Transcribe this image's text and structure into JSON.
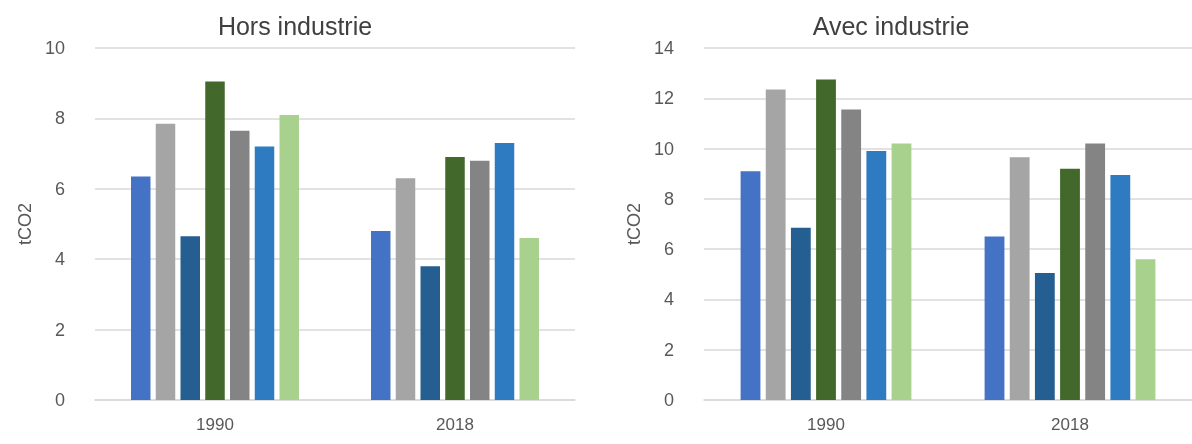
{
  "chart_data": [
    {
      "type": "bar",
      "title": "Hors industrie",
      "ylabel": "tCO2",
      "categories": [
        "1990",
        "2018"
      ],
      "ylim": [
        0,
        10
      ],
      "yticks": [
        0,
        2,
        4,
        6,
        8,
        10
      ],
      "grid": "y",
      "series": [
        {
          "color": "#4472c4",
          "values": [
            6.35,
            4.8
          ]
        },
        {
          "color": "#a5a5a5",
          "values": [
            7.85,
            6.3
          ]
        },
        {
          "color": "#255e91",
          "values": [
            4.65,
            3.8
          ]
        },
        {
          "color": "#43682b",
          "values": [
            9.05,
            6.9
          ]
        },
        {
          "color": "#848484",
          "values": [
            7.65,
            6.8
          ]
        },
        {
          "color": "#2f7bc2",
          "values": [
            7.2,
            7.3
          ]
        },
        {
          "color": "#a9d18e",
          "values": [
            8.1,
            4.6
          ]
        }
      ]
    },
    {
      "type": "bar",
      "title": "Avec industrie",
      "ylabel": "tCO2",
      "categories": [
        "1990",
        "2018"
      ],
      "ylim": [
        0,
        14
      ],
      "yticks": [
        0,
        2,
        4,
        6,
        8,
        10,
        12,
        14
      ],
      "grid": "y",
      "series": [
        {
          "color": "#4472c4",
          "values": [
            9.1,
            6.5
          ]
        },
        {
          "color": "#a5a5a5",
          "values": [
            12.35,
            9.65
          ]
        },
        {
          "color": "#255e91",
          "values": [
            6.85,
            5.05
          ]
        },
        {
          "color": "#43682b",
          "values": [
            12.75,
            9.2
          ]
        },
        {
          "color": "#848484",
          "values": [
            11.55,
            10.2
          ]
        },
        {
          "color": "#2f7bc2",
          "values": [
            9.9,
            8.95
          ]
        },
        {
          "color": "#a9d18e",
          "values": [
            10.2,
            5.6
          ]
        }
      ]
    }
  ]
}
